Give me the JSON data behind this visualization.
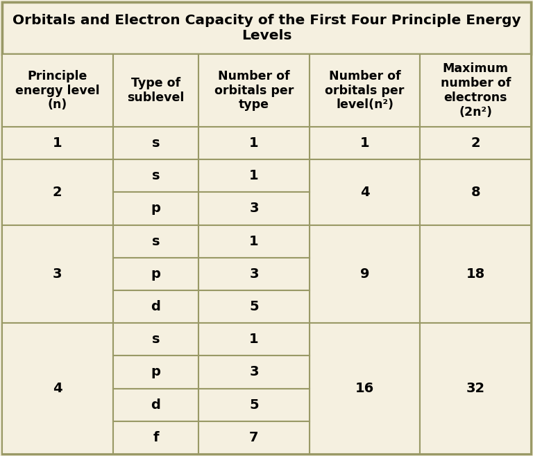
{
  "title": "Orbitals and Electron Capacity of the First Four Principle Energy\nLevels",
  "col_headers": [
    "Principle\nenergy level\n(n)",
    "Type of\nsublevel",
    "Number of\norbitals per\ntype",
    "Number of\norbitals per\nlevel(n²)",
    "Maximum\nnumber of\nelectrons\n(2n²)"
  ],
  "background_color": "#f5f0e0",
  "border_color": "#999966",
  "text_color": "#000000",
  "title_fontsize": 14.5,
  "header_fontsize": 12.5,
  "cell_fontsize": 14,
  "rows": [
    {
      "n": "1",
      "sublevels": [
        "s"
      ],
      "orbitals": [
        "1"
      ],
      "n2": "1",
      "two_n2": "2"
    },
    {
      "n": "2",
      "sublevels": [
        "s",
        "p"
      ],
      "orbitals": [
        "1",
        "3"
      ],
      "n2": "4",
      "two_n2": "8"
    },
    {
      "n": "3",
      "sublevels": [
        "s",
        "p",
        "d"
      ],
      "orbitals": [
        "1",
        "3",
        "5"
      ],
      "n2": "9",
      "two_n2": "18"
    },
    {
      "n": "4",
      "sublevels": [
        "s",
        "p",
        "d",
        "f"
      ],
      "orbitals": [
        "1",
        "3",
        "5",
        "7"
      ],
      "n2": "16",
      "two_n2": "32"
    }
  ]
}
